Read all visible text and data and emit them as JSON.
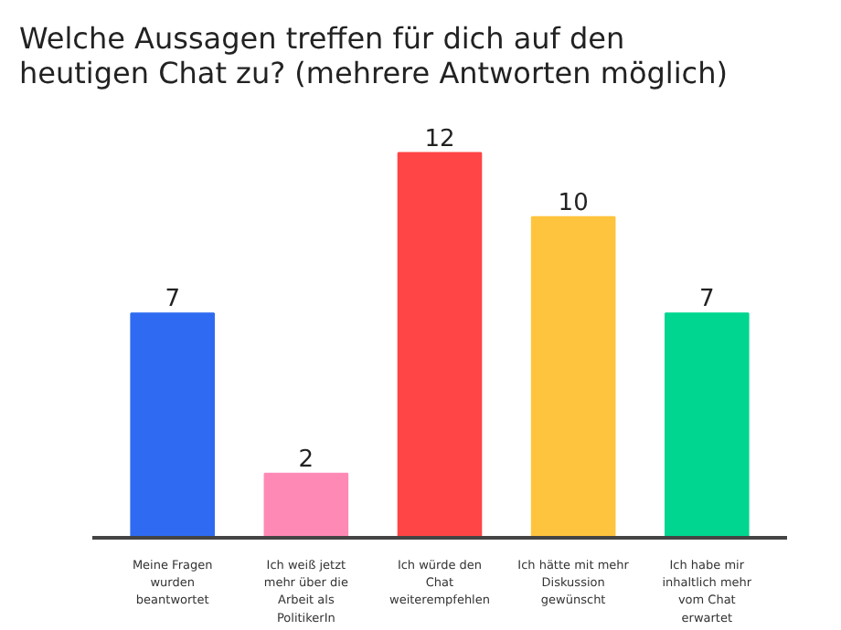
{
  "chart_data": {
    "type": "bar",
    "title": "Welche Aussagen treffen für dich auf den\nheutigen Chat zu? (mehrere Antworten möglich)",
    "categories": [
      "Meine Fragen\nwurden\nbeantwortet",
      "Ich weiß jetzt\nmehr über die\nArbeit als\nPolitikerIn",
      "Ich würde den\nChat\nweiterempfehlen",
      "Ich hätte mit mehr\nDiskussion\ngewünscht",
      "Ich habe mir\ninhaltlich mehr\nvom Chat\nerwartet"
    ],
    "values": [
      7,
      2,
      12,
      10,
      7
    ],
    "colors": [
      "#2e6bf2",
      "#ff89b5",
      "#ff4545",
      "#ffc43d",
      "#00d68f"
    ],
    "data_labels": true
  }
}
